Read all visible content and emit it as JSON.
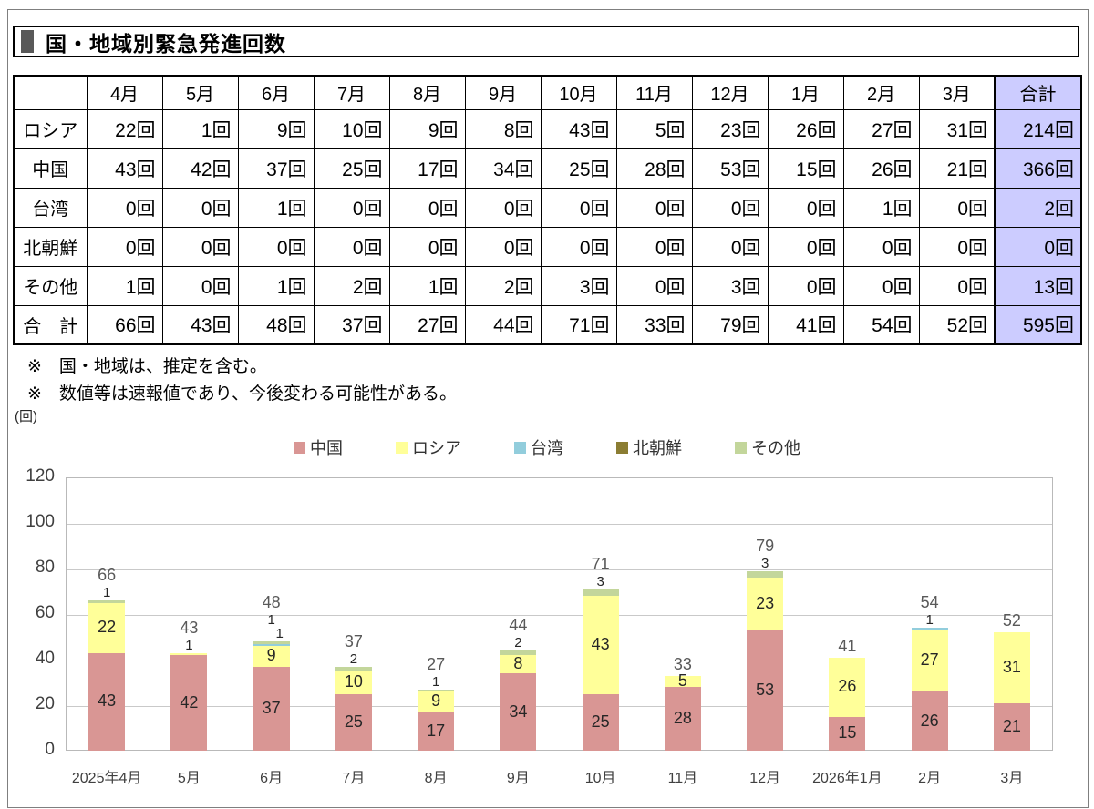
{
  "page": {
    "title": "国・地域別緊急発進回数"
  },
  "table": {
    "corner": "",
    "columns": [
      "4月",
      "5月",
      "6月",
      "7月",
      "8月",
      "9月",
      "10月",
      "11月",
      "12月",
      "1月",
      "2月",
      "3月"
    ],
    "total_col_header": "合計",
    "unit_suffix": "回",
    "total_col_bg": "#CCCCFF",
    "rows": [
      {
        "key": "russia",
        "label": "ロシア",
        "values": [
          22,
          1,
          9,
          10,
          9,
          8,
          43,
          5,
          23,
          26,
          27,
          31
        ],
        "total": 214
      },
      {
        "key": "china",
        "label": "中国",
        "values": [
          43,
          42,
          37,
          25,
          17,
          34,
          25,
          28,
          53,
          15,
          26,
          21
        ],
        "total": 366
      },
      {
        "key": "taiwan",
        "label": "台湾",
        "values": [
          0,
          0,
          1,
          0,
          0,
          0,
          0,
          0,
          0,
          0,
          1,
          0
        ],
        "total": 2
      },
      {
        "key": "north-korea",
        "label": "北朝鮮",
        "values": [
          0,
          0,
          0,
          0,
          0,
          0,
          0,
          0,
          0,
          0,
          0,
          0
        ],
        "total": 0
      },
      {
        "key": "others",
        "label": "その他",
        "values": [
          1,
          0,
          1,
          2,
          1,
          2,
          3,
          0,
          3,
          0,
          0,
          0
        ],
        "total": 13
      },
      {
        "key": "total",
        "label": "合　計",
        "values": [
          66,
          43,
          48,
          37,
          27,
          44,
          71,
          33,
          79,
          41,
          54,
          52
        ],
        "total": 595
      }
    ]
  },
  "notes": [
    "※　国・地域は、推定を含む。",
    "※　数値等は速報値であり、今後変わる可能性がある。"
  ],
  "chart_data": {
    "type": "bar",
    "stacked": true,
    "unit_label": "(回)",
    "categories": [
      "2025年4月",
      "5月",
      "6月",
      "7月",
      "8月",
      "9月",
      "10月",
      "11月",
      "12月",
      "2026年1月",
      "2月",
      "3月"
    ],
    "series": [
      {
        "key": "china",
        "name": "中国",
        "color": "#D99694",
        "values": [
          43,
          42,
          37,
          25,
          17,
          34,
          25,
          28,
          53,
          15,
          26,
          21
        ]
      },
      {
        "key": "russia",
        "name": "ロシア",
        "color": "#FFFF99",
        "values": [
          22,
          1,
          9,
          10,
          9,
          8,
          43,
          5,
          23,
          26,
          27,
          31
        ]
      },
      {
        "key": "taiwan",
        "name": "台湾",
        "color": "#92CDDC",
        "values": [
          0,
          0,
          1,
          0,
          0,
          0,
          0,
          0,
          0,
          0,
          1,
          0
        ]
      },
      {
        "key": "north-korea",
        "name": "北朝鮮",
        "color": "#8B7D33",
        "values": [
          0,
          0,
          0,
          0,
          0,
          0,
          0,
          0,
          0,
          0,
          0,
          0
        ]
      },
      {
        "key": "others",
        "name": "その他",
        "color": "#C3D69B",
        "values": [
          1,
          0,
          1,
          2,
          1,
          2,
          3,
          0,
          3,
          0,
          0,
          0
        ]
      }
    ],
    "totals": [
      66,
      43,
      48,
      37,
      27,
      44,
      71,
      33,
      79,
      41,
      54,
      52
    ],
    "ylim": [
      0,
      120
    ],
    "ytick_interval": 20,
    "yticks": [
      0,
      20,
      40,
      60,
      80,
      100,
      120
    ],
    "grid": true,
    "legend_position": "top",
    "total_label_color": "#595959"
  }
}
